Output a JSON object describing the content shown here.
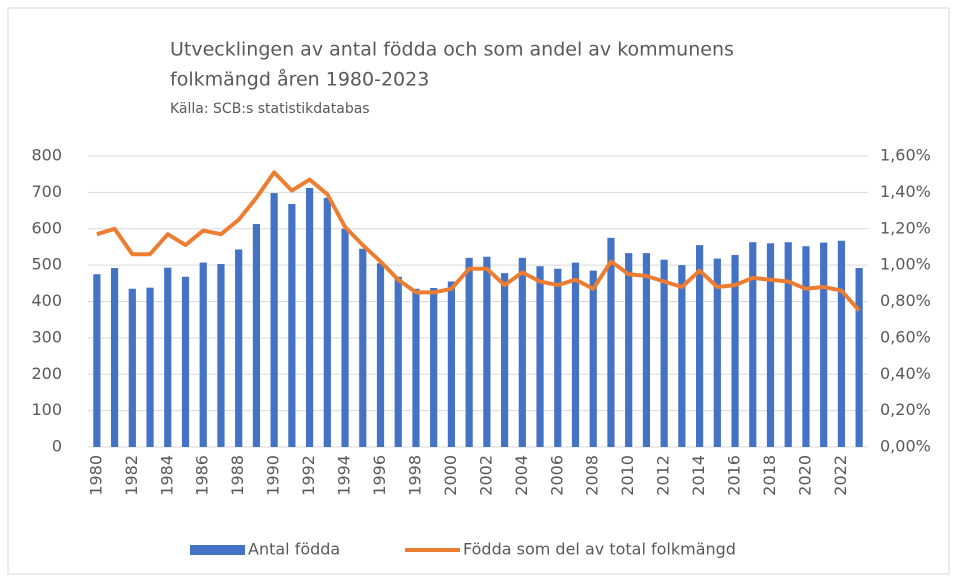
{
  "chart_data": {
    "type": "bar_line",
    "title": [
      "Utvecklingen av antal födda och som andel av kommunens",
      "folkmängd åren 1980-2023"
    ],
    "subtitle": "Källa: SCB:s statistikdatabas",
    "categories": [
      "1980",
      null,
      "1982",
      null,
      "1984",
      null,
      "1986",
      null,
      "1988",
      null,
      "1990",
      null,
      "1992",
      null,
      "1994",
      null,
      "1996",
      null,
      "1998",
      null,
      "2000",
      null,
      "2002",
      null,
      "2004",
      null,
      "2006",
      null,
      "2008",
      null,
      "2010",
      null,
      "2012",
      null,
      "2014",
      null,
      "2016",
      null,
      "2018",
      null,
      "2020",
      null,
      "2022",
      null
    ],
    "series": [
      {
        "name": "Antal födda",
        "type": "bar",
        "color": "#4472c4",
        "values": [
          475,
          492,
          435,
          438,
          493,
          468,
          507,
          503,
          543,
          613,
          698,
          668,
          712,
          685,
          600,
          545,
          505,
          468,
          435,
          437,
          455,
          520,
          523,
          478,
          520,
          497,
          490,
          507,
          485,
          575,
          533,
          533,
          515,
          500,
          555,
          518,
          528,
          563,
          560,
          563,
          552,
          562,
          567,
          492
        ]
      },
      {
        "name": "Födda som del av total folkmängd",
        "type": "line",
        "axis": "y2",
        "color": "#ed7d31",
        "values": [
          1.17,
          1.2,
          1.06,
          1.06,
          1.17,
          1.11,
          1.19,
          1.17,
          1.25,
          1.37,
          1.51,
          1.41,
          1.47,
          1.39,
          1.21,
          1.11,
          1.02,
          0.92,
          0.85,
          0.85,
          0.87,
          0.98,
          0.98,
          0.89,
          0.96,
          0.91,
          0.89,
          0.92,
          0.87,
          1.02,
          0.95,
          0.94,
          0.91,
          0.88,
          0.97,
          0.88,
          0.89,
          0.93,
          0.92,
          0.91,
          0.87,
          0.88,
          0.86,
          0.75
        ]
      }
    ],
    "ylim": [
      0,
      800
    ],
    "yticks": [
      0,
      100,
      200,
      300,
      400,
      500,
      600,
      700,
      800
    ],
    "y2lim": [
      0,
      1.6
    ],
    "y2ticks": [
      {
        "value": 0,
        "label": "0,00%"
      },
      {
        "value": 0.2,
        "label": "0,20%"
      },
      {
        "value": 0.4,
        "label": "0,40%"
      },
      {
        "value": 0.6,
        "label": "0,60%"
      },
      {
        "value": 0.8,
        "label": "0,80%"
      },
      {
        "value": 1.0,
        "label": "1,00%"
      },
      {
        "value": 1.2,
        "label": "1,20%"
      },
      {
        "value": 1.4,
        "label": "1,40%"
      },
      {
        "value": 1.6,
        "label": "1,60%"
      }
    ],
    "grid": true,
    "legend": "bottom"
  }
}
